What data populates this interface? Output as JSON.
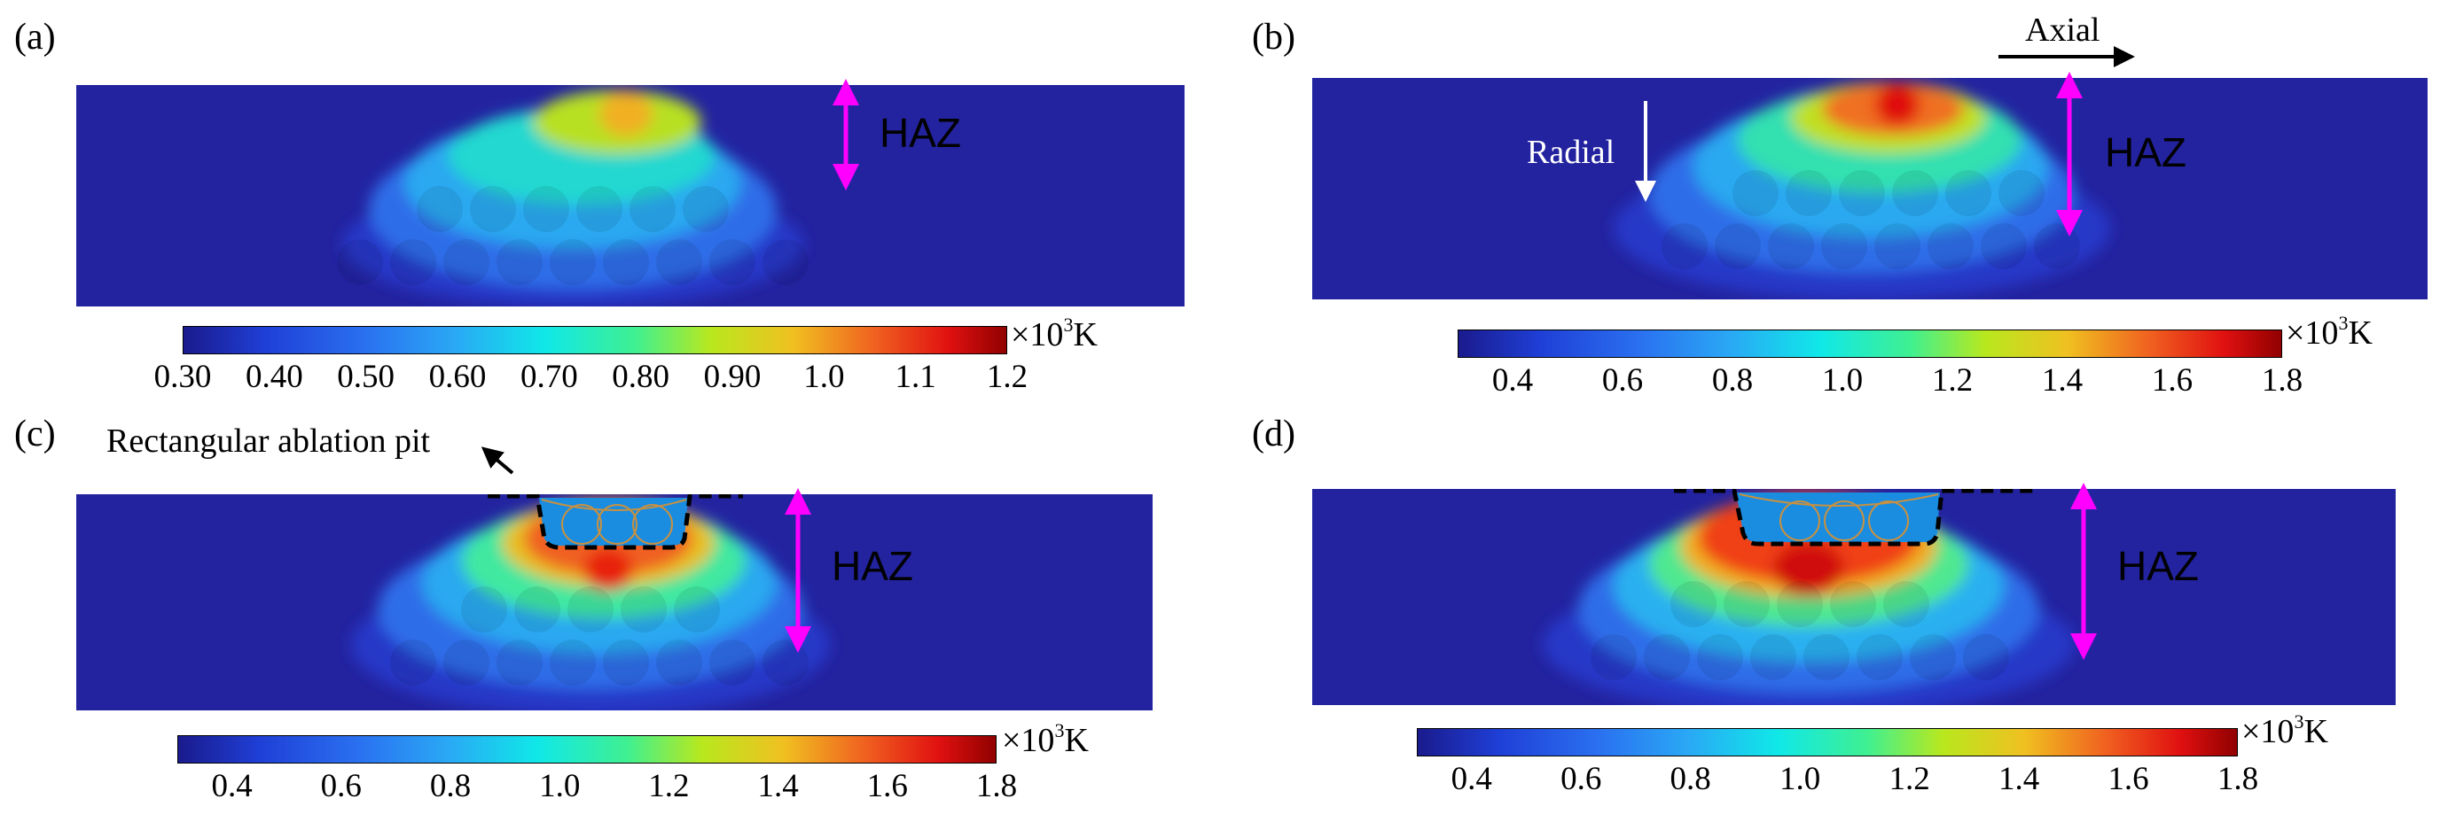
{
  "colors": {
    "background": "#ffffff",
    "haz": "#ff00ff",
    "arrow_dark": "#000000",
    "arrow_light": "#ffffff",
    "colormap": [
      "#1a1a8c",
      "#1f3fd6",
      "#2aa0f5",
      "#10e8e8",
      "#40f090",
      "#b8e81e",
      "#f0c020",
      "#f06020",
      "#e01010",
      "#900000"
    ]
  },
  "panels": [
    {
      "id": "a",
      "label": "(a)",
      "haz_label": "HAZ",
      "colorbar": {
        "ticks": [
          "0.30",
          "0.40",
          "0.50",
          "0.60",
          "0.70",
          "0.80",
          "0.90",
          "1.0",
          "1.1",
          "1.2"
        ],
        "min": 0.3,
        "max": 1.2,
        "scale": "×10",
        "scale_exp": "3",
        "unit": "K"
      },
      "peak_temperature_kK": 0.9
    },
    {
      "id": "b",
      "label": "(b)",
      "haz_label": "HAZ",
      "axial_label": "Axial",
      "radial_label": "Radial",
      "colorbar": {
        "ticks": [
          "0.4",
          "0.6",
          "0.8",
          "1.0",
          "1.2",
          "1.4",
          "1.6",
          "1.8"
        ],
        "min": 0.3,
        "max": 1.8,
        "scale": "×10",
        "scale_exp": "3",
        "unit": "K"
      },
      "peak_temperature_kK": 1.65
    },
    {
      "id": "c",
      "label": "(c)",
      "haz_label": "HAZ",
      "pit_label": "Rectangular ablation pit",
      "colorbar": {
        "ticks": [
          "0.4",
          "0.6",
          "0.8",
          "1.0",
          "1.2",
          "1.4",
          "1.6",
          "1.8"
        ],
        "min": 0.3,
        "max": 1.8,
        "scale": "×10",
        "scale_exp": "3",
        "unit": "K"
      },
      "peak_temperature_kK": 1.6
    },
    {
      "id": "d",
      "label": "(d)",
      "haz_label": "HAZ",
      "colorbar": {
        "ticks": [
          "0.4",
          "0.6",
          "0.8",
          "1.0",
          "1.2",
          "1.4",
          "1.6",
          "1.8"
        ],
        "min": 0.3,
        "max": 1.8,
        "scale": "×10",
        "scale_exp": "3",
        "unit": "K"
      },
      "peak_temperature_kK": 1.75
    }
  ]
}
